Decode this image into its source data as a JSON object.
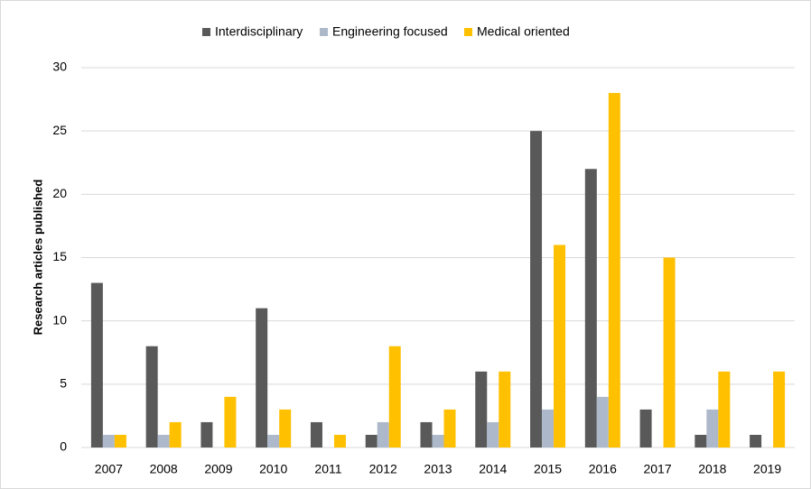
{
  "chart_data": {
    "type": "bar",
    "y_label": "Research articles published",
    "categories": [
      "2007",
      "2008",
      "2009",
      "2010",
      "2011",
      "2012",
      "2013",
      "2014",
      "2015",
      "2016",
      "2017",
      "2018",
      "2019"
    ],
    "series": [
      {
        "name": "Interdisciplinary",
        "color": "#595959",
        "values": [
          13,
          8,
          2,
          11,
          2,
          1,
          2,
          6,
          25,
          22,
          3,
          1,
          1
        ]
      },
      {
        "name": "Engineering focused",
        "color": "#adb9ca",
        "values": [
          1,
          1,
          0,
          1,
          0,
          2,
          1,
          2,
          3,
          4,
          0,
          3,
          0
        ]
      },
      {
        "name": "Medical oriented",
        "color": "#ffc000",
        "values": [
          1,
          2,
          4,
          3,
          1,
          8,
          3,
          6,
          16,
          28,
          15,
          6,
          6
        ]
      }
    ],
    "ylim": [
      0,
      30
    ],
    "yticks": [
      0,
      5,
      10,
      15,
      20,
      25,
      30
    ],
    "grid": true,
    "legend": "top"
  }
}
